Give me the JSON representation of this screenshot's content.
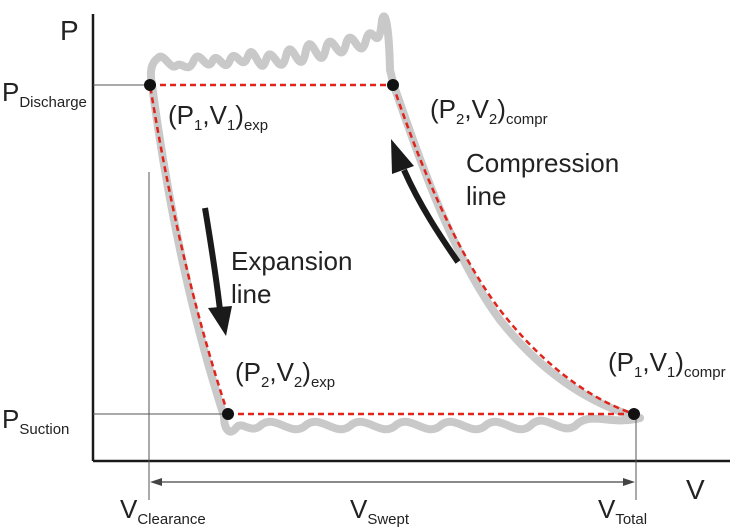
{
  "axes": {
    "y_label": "P",
    "x_label": "V"
  },
  "pressures": {
    "discharge": {
      "main": "P",
      "sub": "Discharge"
    },
    "suction": {
      "main": "P",
      "sub": "Suction"
    }
  },
  "volumes": {
    "clearance": {
      "main": "V",
      "sub": "Clearance"
    },
    "swept": {
      "main": "V",
      "sub": "Swept"
    },
    "total": {
      "main": "V",
      "sub": "Total"
    }
  },
  "points": {
    "p1v1_exp": {
      "open": "(P",
      "s1": "1",
      "mid": ",V",
      "s2": "1",
      "close": ")",
      "tag": "exp"
    },
    "p2v2_compr": {
      "open": "(P",
      "s1": "2",
      "mid": ",V",
      "s2": "2",
      "close": ")",
      "tag": "compr"
    },
    "p2v2_exp": {
      "open": "(P",
      "s1": "2",
      "mid": ",V",
      "s2": "2",
      "close": ")",
      "tag": "exp"
    },
    "p1v1_compr": {
      "open": "(P",
      "s1": "1",
      "mid": ",V",
      "s2": "1",
      "close": ")",
      "tag": "compr"
    }
  },
  "annotations": {
    "compression": {
      "line1": "Compression",
      "line2": "line"
    },
    "expansion": {
      "line1": "Expansion",
      "line2": "line"
    }
  },
  "colors": {
    "real_cycle": "#c9c9c9",
    "ideal_cycle": "#e0241b",
    "axis": "#1a1a1a"
  }
}
